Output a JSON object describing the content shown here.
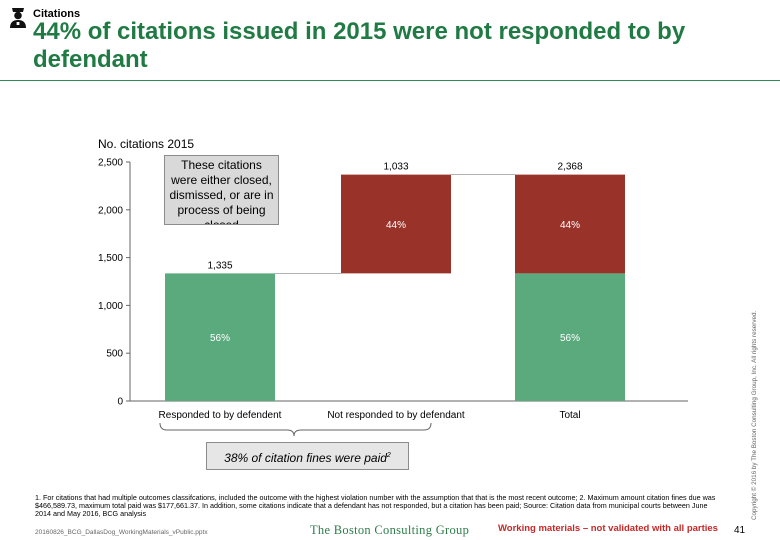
{
  "header": {
    "section_tag": "Citations",
    "title": "44% of citations issued in 2015 were not responded to by defendant",
    "icon": "police-officer-icon"
  },
  "colors": {
    "accent_green": "#207a43",
    "bar_green": "#5aaa7e",
    "bar_red": "#993329",
    "warning_red": "#c62828"
  },
  "chart_data": {
    "type": "bar",
    "subtype": "waterfall",
    "unit_label": "No. citations 2015",
    "categories": [
      "Responded to by defendent",
      "Not responded to by defendant",
      "Total"
    ],
    "totals": [
      1335,
      1033,
      2368
    ],
    "total_labels": [
      "1,335",
      "1,033",
      "2,368"
    ],
    "segments": [
      [
        {
          "start": 0,
          "end": 1335,
          "color": "#5aaa7e",
          "label": "56%"
        }
      ],
      [
        {
          "start": 1335,
          "end": 2368,
          "color": "#993329",
          "label": "44%"
        }
      ],
      [
        {
          "start": 0,
          "end": 1335,
          "color": "#5aaa7e",
          "label": "56%"
        },
        {
          "start": 1335,
          "end": 2368,
          "color": "#993329",
          "label": "44%"
        }
      ]
    ],
    "ylim": [
      0,
      2500
    ],
    "yticks": [
      0,
      500,
      1000,
      1500,
      2000,
      2500
    ],
    "ytick_labels": [
      "0",
      "500",
      "1,000",
      "1,500",
      "2,000",
      "2,500"
    ],
    "grid": false,
    "connectors": true
  },
  "annotations": {
    "callout": "These citations were either closed, dismissed, or are in process of being closed",
    "paid_note": "38% of citation fines were paid",
    "paid_note_sup": "2"
  },
  "footer": {
    "footnote": "1. For citations that had multiple outcomes classifcations, included the outcome with the highest violation number with the assumption that that is the most recent outcome; 2. Maximum amount citation fines due was $466,589.73, maximum total paid was $177,661.37. In addition, some citations indicate that a defendant has not responded, but a citation has been paid; Source: Citation data from municipal courts between June 2014 and May 2016, BCG analysis",
    "filename": "20160826_BCG_DallasDog_WorkingMaterials_vPublic.pptx",
    "brand": "The Boston Consulting Group",
    "working_note": "Working materials – not validated with all parties",
    "page_number": "41",
    "copyright": "Copyright © 2016 by The Boston Consulting Group, Inc. All rights reserved."
  }
}
